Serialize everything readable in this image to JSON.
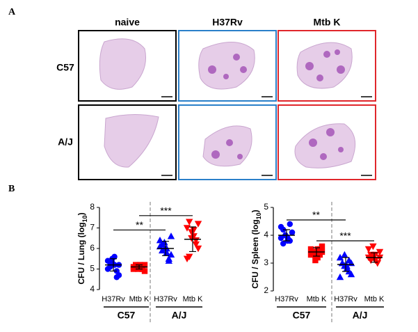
{
  "panel_labels": [
    "A",
    "B"
  ],
  "images": {
    "columns": [
      "naive",
      "H37Rv",
      "Mtb K"
    ],
    "rows": [
      "C57",
      "A/J"
    ]
  },
  "chart_data": [
    {
      "type": "dot",
      "y_label": [
        "CFU / Lung (log",
        "10",
        ")"
      ],
      "categories": [
        "H37Rv",
        "Mtb K",
        "H37Rv",
        "Mtb K"
      ],
      "groups": [
        "C57",
        "A/J"
      ],
      "colors": [
        "#0000ff",
        "#ff0000",
        "#0000ff",
        "#ff0000"
      ],
      "markers": [
        "circle",
        "square",
        "triangle",
        "inverted-triangle"
      ],
      "points": [
        [
          5.0,
          5.3,
          5.5,
          5.2,
          4.6,
          4.7,
          5.4,
          5.1,
          5.3,
          5.6,
          4.9,
          5.2
        ],
        [
          5.0,
          5.1,
          5.1,
          5.2,
          5.0,
          4.9,
          5.1,
          5.2,
          5.0,
          5.1,
          5.0,
          5.2
        ],
        [
          6.4,
          6.2,
          6.0,
          5.8,
          5.5,
          5.7,
          6.1,
          5.9,
          6.3,
          6.0,
          5.4,
          6.6
        ],
        [
          7.0,
          7.3,
          6.8,
          6.6,
          6.4,
          6.0,
          5.5,
          5.6,
          6.5,
          6.9,
          6.2,
          7.2
        ]
      ],
      "means": [
        5.2,
        5.1,
        6.0,
        6.45
      ],
      "sd": [
        0.3,
        0.1,
        0.35,
        0.6
      ],
      "ylim": [
        4,
        8
      ],
      "yticks": [
        4,
        5,
        6,
        7,
        8
      ],
      "annotations": [
        {
          "text": "**",
          "from": 0,
          "to": 2,
          "y": 6.9
        },
        {
          "text": "***",
          "from": 1,
          "to": 3,
          "y": 7.6
        }
      ]
    },
    {
      "type": "dot",
      "y_label": [
        "CFU / Spleen (log",
        "10",
        ")"
      ],
      "categories": [
        "H37Rv",
        "Mtb K",
        "H37Rv",
        "Mtb K"
      ],
      "groups": [
        "C57",
        "A/J"
      ],
      "colors": [
        "#0000ff",
        "#ff0000",
        "#0000ff",
        "#ff0000"
      ],
      "markers": [
        "circle",
        "square",
        "triangle",
        "inverted-triangle"
      ],
      "points": [
        [
          4.3,
          4.2,
          4.0,
          3.9,
          3.8,
          4.1,
          3.9,
          3.7,
          4.0,
          3.8,
          4.4,
          4.1
        ],
        [
          3.5,
          3.4,
          3.3,
          3.2,
          3.5,
          3.6,
          3.3,
          3.4,
          3.1,
          3.5,
          3.3,
          3.4
        ],
        [
          3.2,
          3.0,
          2.9,
          2.8,
          3.1,
          2.6,
          2.5,
          3.0,
          3.3,
          2.9,
          2.7,
          3.0
        ],
        [
          3.5,
          3.3,
          3.2,
          3.1,
          3.0,
          3.4,
          3.2,
          3.1,
          3.6,
          3.3,
          3.0,
          3.2
        ]
      ],
      "means": [
        4.0,
        3.4,
        2.95,
        3.2
      ],
      "sd": [
        0.2,
        0.15,
        0.25,
        0.17
      ],
      "ylim": [
        2,
        5
      ],
      "yticks": [
        2,
        3,
        4,
        5
      ],
      "annotations": [
        {
          "text": "**",
          "from": 0,
          "to": 2,
          "y": 4.55
        },
        {
          "text": "***",
          "from": 1,
          "to": 3,
          "y": 3.8
        }
      ]
    }
  ]
}
